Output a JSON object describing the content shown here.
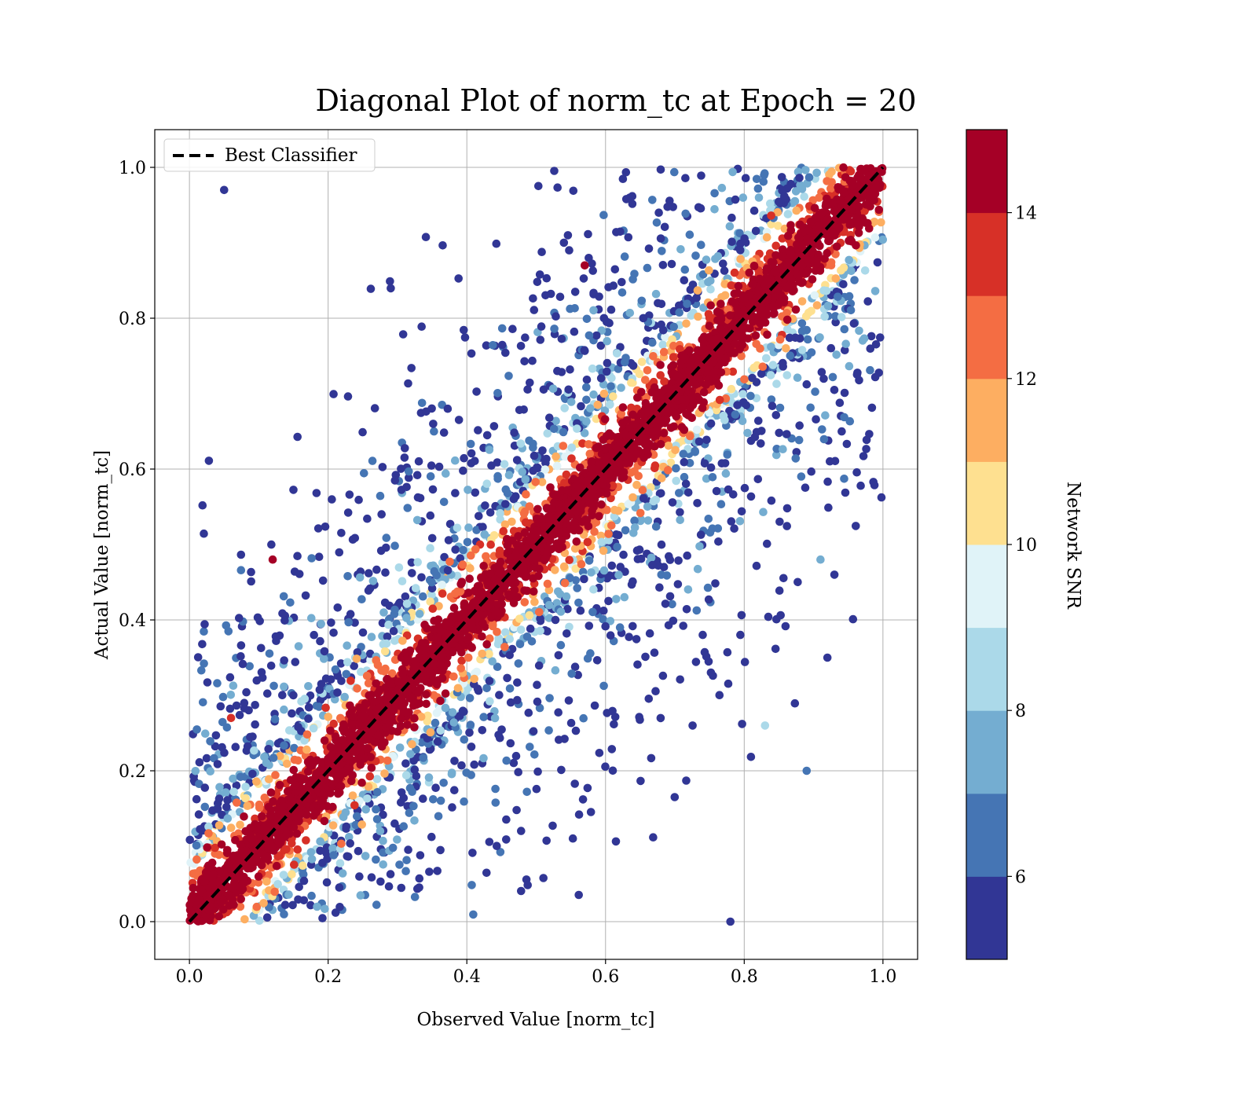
{
  "chart_data": {
    "type": "scatter",
    "title": "Diagonal Plot of norm_tc at Epoch = 20",
    "xlabel": "Observed Value [norm_tc]",
    "ylabel": "Actual Value [norm_tc]",
    "xlim": [
      -0.05,
      1.05
    ],
    "ylim": [
      -0.05,
      1.05
    ],
    "xticks": [
      "0.0",
      "0.2",
      "0.4",
      "0.6",
      "0.8",
      "1.0"
    ],
    "yticks": [
      "0.0",
      "0.2",
      "0.4",
      "0.6",
      "0.8",
      "1.0"
    ],
    "grid": true,
    "legend": {
      "placement": "top-left",
      "entries": [
        "Best Classifier"
      ]
    },
    "reference_line": {
      "name": "Best Classifier",
      "style": "dashed",
      "color": "#000000",
      "x": [
        0,
        1
      ],
      "y": [
        0,
        1
      ]
    },
    "colorbar": {
      "label": "Network SNR",
      "range": [
        5,
        15
      ],
      "ticks": [
        "6",
        "8",
        "10",
        "12",
        "14"
      ],
      "colors": [
        "#313695",
        "#4575b4",
        "#74add1",
        "#abd9e9",
        "#e0f3f8",
        "#fee090",
        "#fdae61",
        "#f46d43",
        "#d73027",
        "#a50026"
      ]
    },
    "series": [
      {
        "description_level": "high SNR points concentrated along the diagonal",
        "snr": 15
      },
      {
        "description_level": "low SNR points scattered away from the diagonal",
        "snr": 5
      }
    ],
    "sample_points": [
      {
        "x": 0.05,
        "y": 0.97,
        "snr": 5
      },
      {
        "x": 0.57,
        "y": 0.87,
        "snr": 15
      },
      {
        "x": 0.12,
        "y": 0.48,
        "snr": 15
      },
      {
        "x": 0.06,
        "y": 0.27,
        "snr": 13
      },
      {
        "x": 0.92,
        "y": 0.35,
        "snr": 5
      },
      {
        "x": 0.89,
        "y": 0.2,
        "snr": 6
      },
      {
        "x": 0.78,
        "y": 0.0,
        "snr": 5
      },
      {
        "x": 0.83,
        "y": 0.26,
        "snr": 8
      },
      {
        "x": 0.93,
        "y": 0.46,
        "snr": 5
      },
      {
        "x": 0.91,
        "y": 0.48,
        "snr": 7
      }
    ]
  }
}
